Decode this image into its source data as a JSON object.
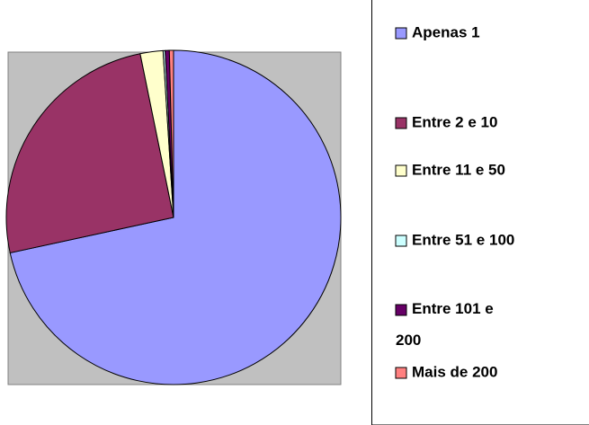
{
  "chart_data": {
    "type": "pie",
    "categories": [
      "Apenas 1",
      "Entre 2 e 10",
      "Entre 11 e 50",
      "Entre 51 e 100",
      "Entre 101 e 200",
      "Mais de 200"
    ],
    "values": [
      71.6,
      25.2,
      2.2,
      0.2,
      0.4,
      0.4
    ],
    "colors": [
      "#9999ff",
      "#993366",
      "#ffffcc",
      "#ccffff",
      "#660066",
      "#ff8080"
    ]
  }
}
